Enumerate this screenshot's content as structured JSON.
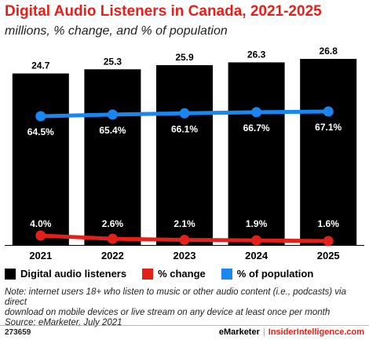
{
  "header": {
    "title": "Digital Audio Listeners in Canada, 2021-2025",
    "subtitle": "millions, % change, and % of population"
  },
  "legend": {
    "items": [
      {
        "label": "Digital audio listeners",
        "color": "#000000"
      },
      {
        "label": "% change",
        "color": "#e2221a"
      },
      {
        "label": "% of population",
        "color": "#1a86f0"
      }
    ]
  },
  "footer": {
    "note_line1": "Note: internet users 18+ who listen to music or other audio content (i.e., podcasts) via direct",
    "note_line2": "download on mobile devices or live stream on any device at least once per month",
    "source": "Source: eMarketer, July 2021",
    "chart_id": "273659",
    "brand_left": "eMarketer",
    "brand_sep": "|",
    "brand_right": "InsiderIntelligence.com"
  },
  "chart_data": {
    "type": "bar",
    "categories": [
      "2021",
      "2022",
      "2023",
      "2024",
      "2025"
    ],
    "series": [
      {
        "name": "Digital audio listeners",
        "kind": "bar",
        "color": "#000000",
        "values": [
          24.7,
          25.3,
          25.9,
          26.3,
          26.8
        ],
        "labels": [
          "24.7",
          "25.3",
          "25.9",
          "26.3",
          "26.8"
        ]
      },
      {
        "name": "% change",
        "kind": "line",
        "color": "#e2221a",
        "values": [
          4.0,
          2.6,
          2.1,
          1.9,
          1.6
        ],
        "labels": [
          "4.0%",
          "2.6%",
          "2.1%",
          "1.9%",
          "1.6%"
        ]
      },
      {
        "name": "% of population",
        "kind": "line",
        "color": "#1a86f0",
        "values": [
          64.5,
          65.4,
          66.1,
          66.7,
          67.1
        ],
        "labels": [
          "64.5%",
          "65.4%",
          "66.1%",
          "66.7%",
          "67.1%"
        ]
      }
    ],
    "title": "Digital Audio Listeners in Canada, 2021-2025",
    "xlabel": "",
    "ylabel": "",
    "ylim": [
      0,
      26.8
    ],
    "grid": false,
    "legend_position": "bottom"
  }
}
